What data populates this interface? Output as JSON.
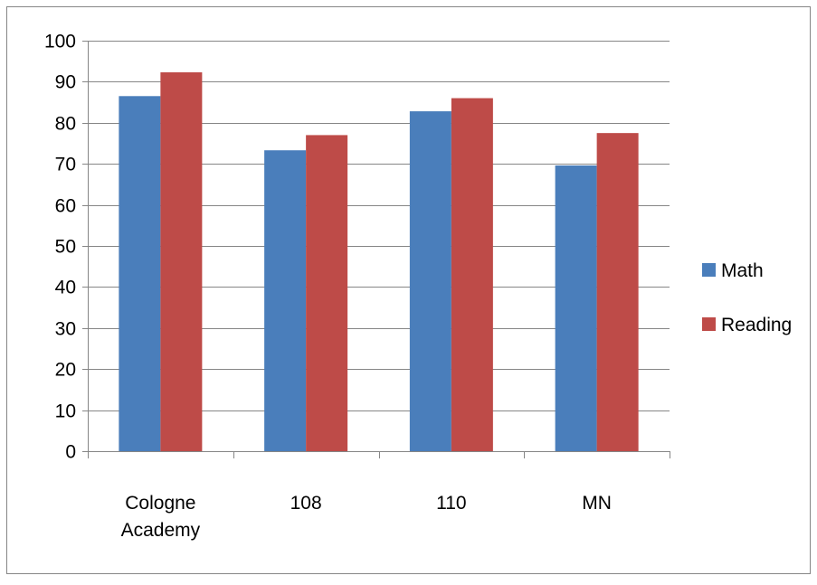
{
  "chart_data": {
    "type": "bar",
    "categories": [
      [
        "Cologne",
        "Academy"
      ],
      [
        "108"
      ],
      [
        "110"
      ],
      [
        "MN"
      ]
    ],
    "series": [
      {
        "name": "Math",
        "values": [
          86.5,
          73.3,
          82.8,
          69.6
        ],
        "color": "#4a7ebb"
      },
      {
        "name": "Reading",
        "values": [
          92.3,
          77.0,
          86.0,
          77.5
        ],
        "color": "#be4b48"
      }
    ],
    "yticks": [
      0,
      10,
      20,
      30,
      40,
      50,
      60,
      70,
      80,
      90,
      100
    ],
    "ylim": [
      0,
      100
    ],
    "grid": true,
    "legend_position": "right",
    "title": "",
    "xlabel": "",
    "ylabel": ""
  }
}
